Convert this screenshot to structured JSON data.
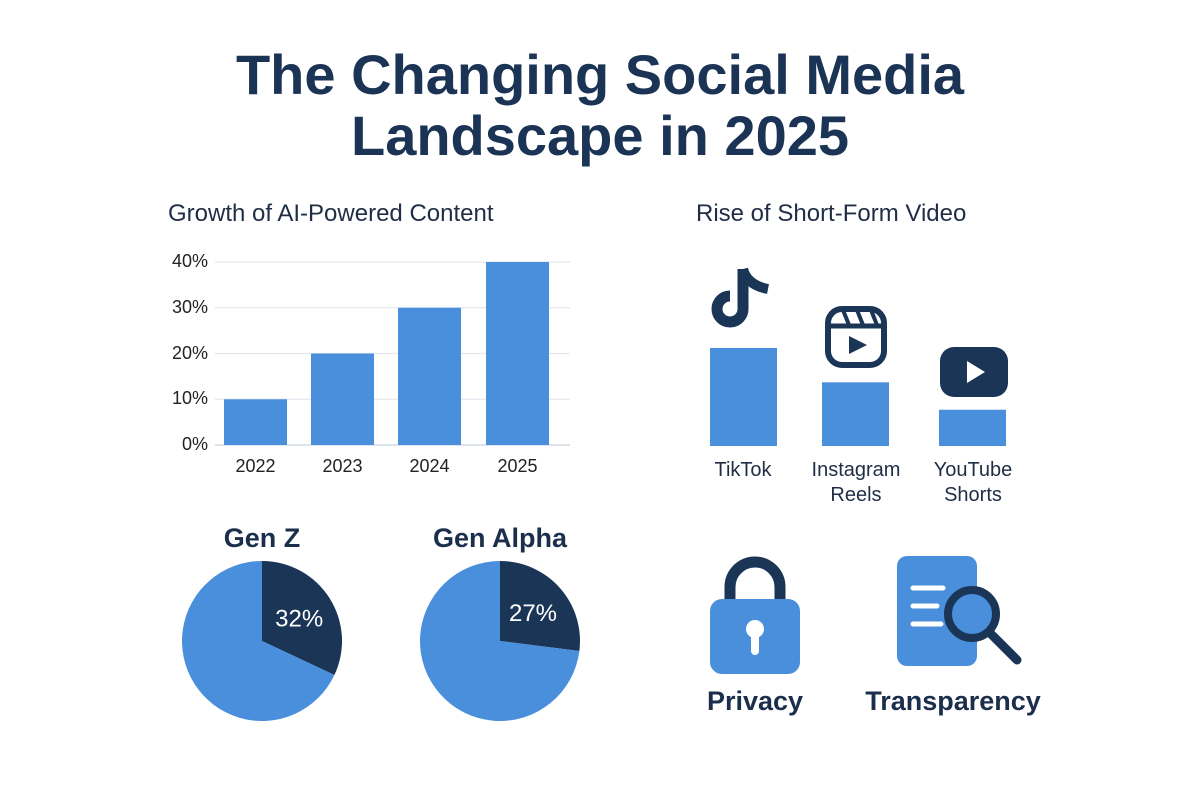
{
  "title_line1": "The Changing Social Media",
  "title_line2": "Landscape in 2025",
  "colors": {
    "primary_blue": "#4a8fdc",
    "dark_navy": "#1a3556",
    "title": "#1b3354"
  },
  "chart_data": [
    {
      "type": "bar",
      "title": "Growth of AI-Powered Content",
      "categories": [
        "2022",
        "2023",
        "2024",
        "2025"
      ],
      "values": [
        10,
        20,
        30,
        40
      ],
      "ylim": [
        0,
        40
      ],
      "yticks": [
        "0%",
        "10%",
        "20%",
        "30%",
        "40%"
      ],
      "grid": true
    },
    {
      "type": "bar",
      "title": "Rise of Short-Form Video",
      "categories": [
        "TikTok",
        "Instagram Reels",
        "YouTube Shorts"
      ],
      "category_lines": [
        [
          "TikTok"
        ],
        [
          "Instagram",
          "Reels"
        ],
        [
          "YouTube",
          "Shorts"
        ]
      ],
      "values_relative": [
        100,
        65,
        37
      ],
      "icons": [
        "tiktok-icon",
        "instagram-reels-icon",
        "youtube-icon"
      ]
    },
    {
      "type": "pie",
      "title": "Gen Z",
      "slices": [
        {
          "value": 32,
          "label": "32%",
          "color": "#1a3556"
        },
        {
          "value": 68,
          "color": "#4a8fdc"
        }
      ]
    },
    {
      "type": "pie",
      "title": "Gen Alpha",
      "slices": [
        {
          "value": 27,
          "label": "27%",
          "color": "#1a3556"
        },
        {
          "value": 73,
          "color": "#4a8fdc"
        }
      ]
    }
  ],
  "concerns": [
    {
      "label": "Privacy",
      "icon": "lock-icon"
    },
    {
      "label": "Transparency",
      "icon": "document-search-icon"
    }
  ]
}
